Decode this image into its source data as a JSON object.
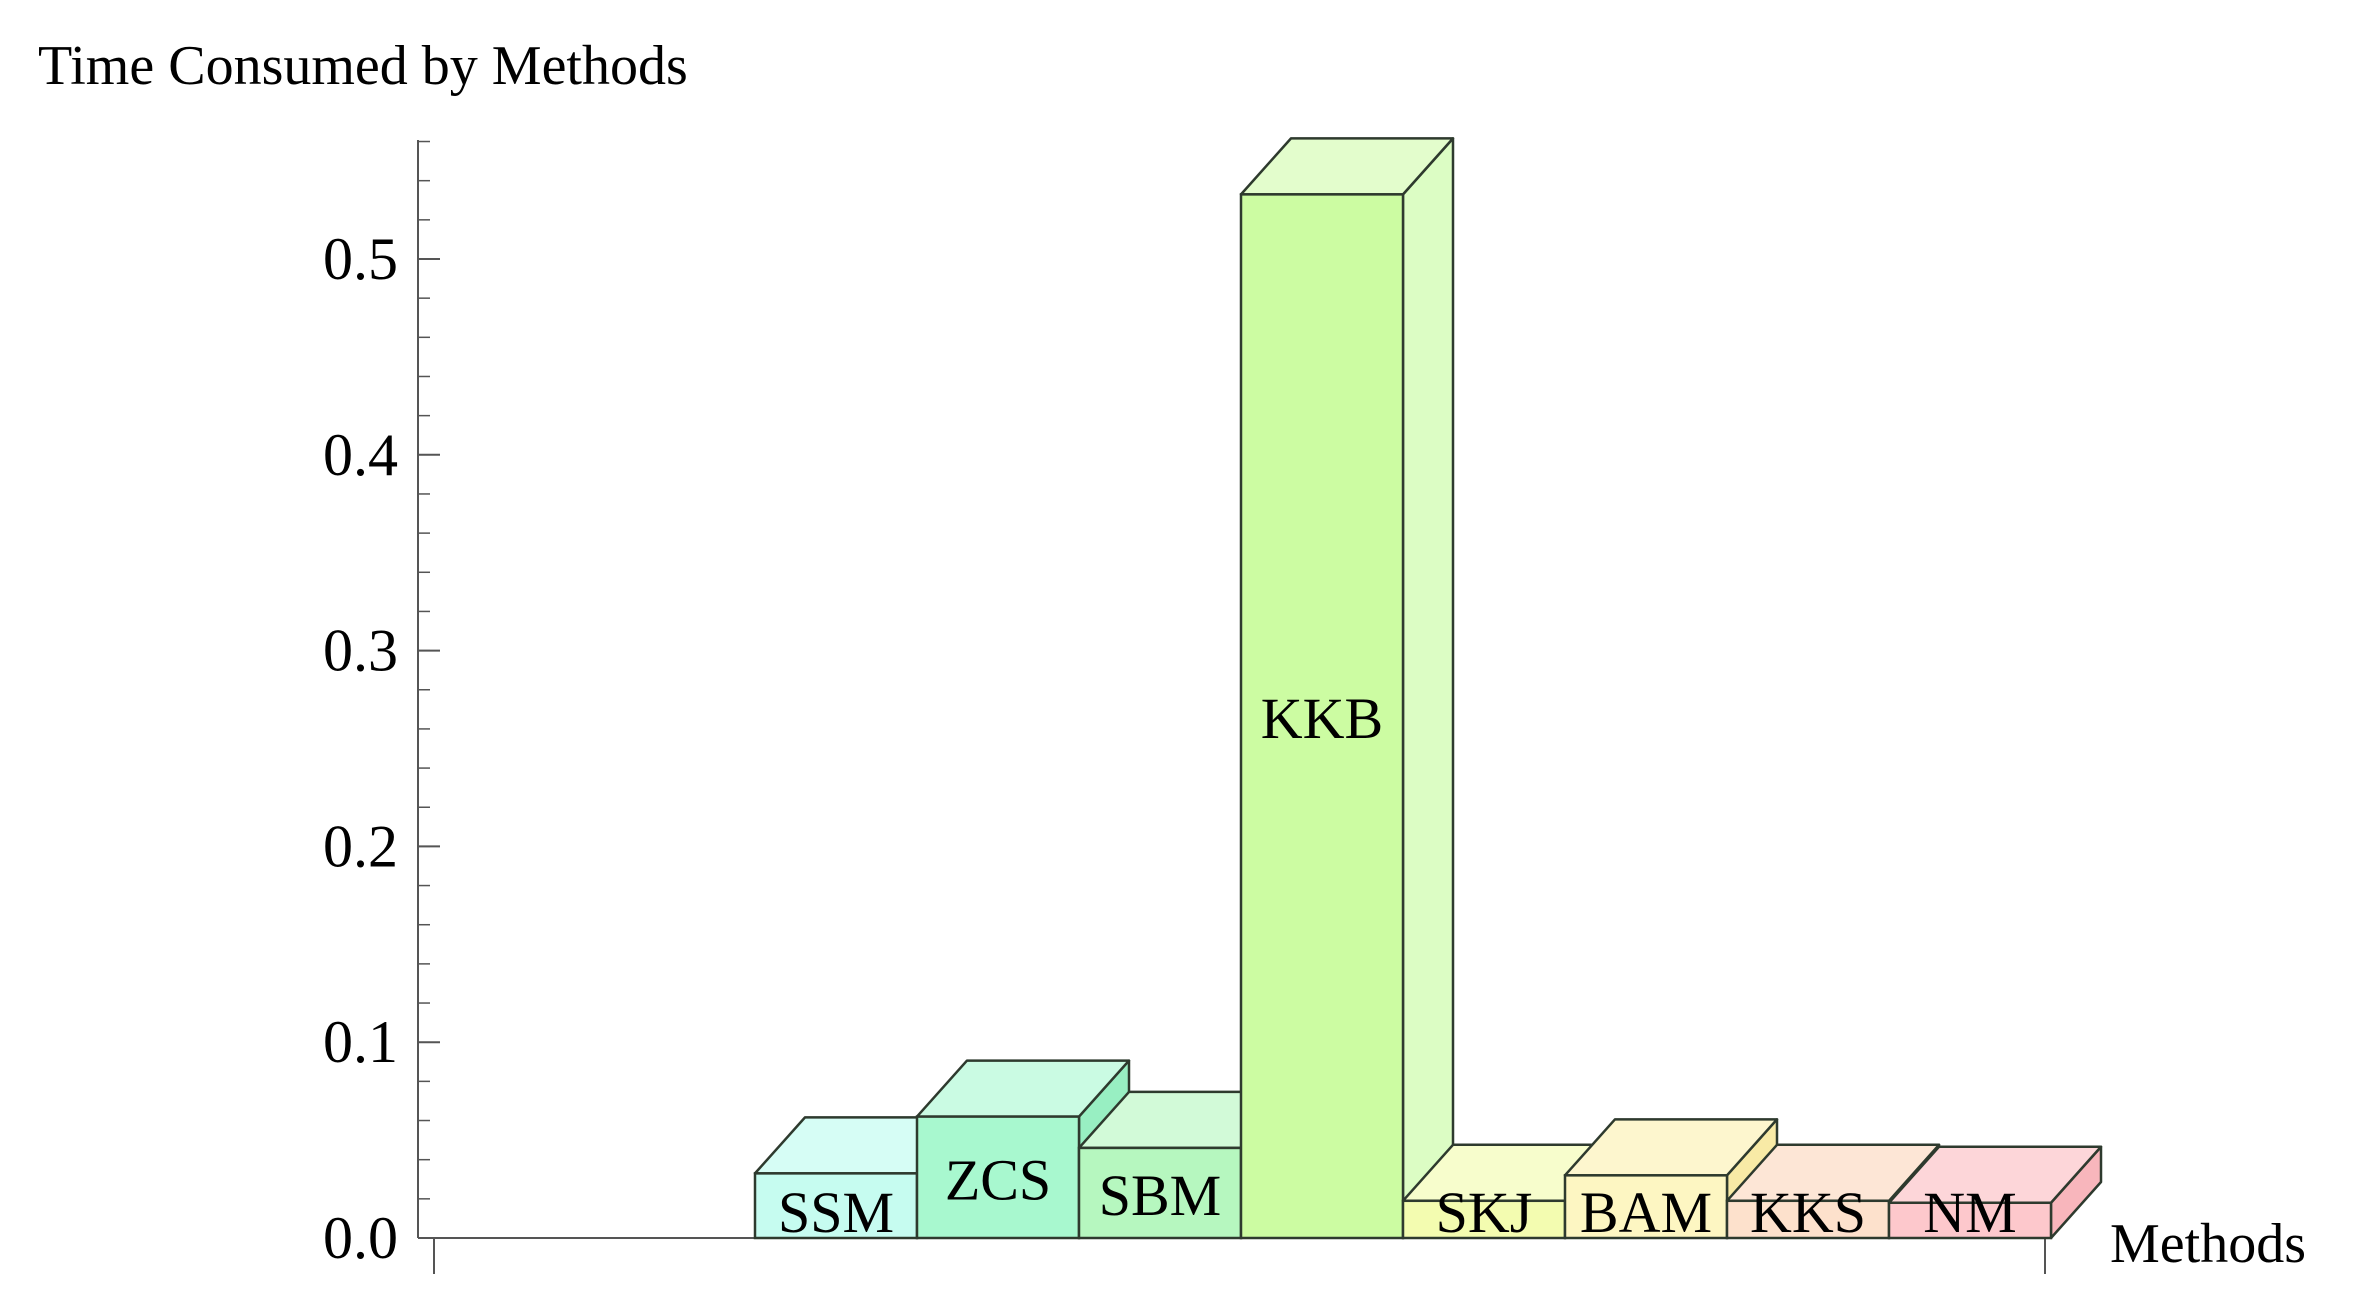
{
  "chart_data": {
    "type": "bar",
    "title": "",
    "ylabel": "Time Consumed by Methods",
    "xlabel": "Methods",
    "categories": [
      "SSM",
      "ZCS",
      "SBM",
      "KKB",
      "SKJ",
      "BAM",
      "KKS",
      "NM"
    ],
    "values": [
      0.033,
      0.062,
      0.046,
      0.533,
      0.019,
      0.032,
      0.019,
      0.018
    ],
    "ylim": [
      0.0,
      0.56
    ],
    "yticks": [
      "0.0",
      "0.1",
      "0.2",
      "0.3",
      "0.4",
      "0.5"
    ],
    "grid": false,
    "bar_style": "3d",
    "colors": {
      "SSM": {
        "front": "#c6fcf0",
        "top": "#d6fdf5",
        "side": "#b2f3e3"
      },
      "ZCS": {
        "front": "#a8f8cf",
        "top": "#cafbe3",
        "side": "#98efc2"
      },
      "SBM": {
        "front": "#b6f7bf",
        "top": "#d2fad8",
        "side": "#a5f0b0"
      },
      "KKB": {
        "front": "#ccfca2",
        "top": "#e3fdcc",
        "side": "#dcfdc4"
      },
      "SKJ": {
        "front": "#f3fcb0",
        "top": "#f7fdcc",
        "side": "#eaf59e"
      },
      "BAM": {
        "front": "#fdf6c2",
        "top": "#fdf6ce",
        "side": "#f8eaa6"
      },
      "KKS": {
        "front": "#fde1cc",
        "top": "#fde6d6",
        "side": "#f8d2b8"
      },
      "NM": {
        "front": "#fdc8cc",
        "top": "#fdd6d9",
        "side": "#f8b6bc"
      }
    },
    "edge_color": "#2e3a2e",
    "axis_color": "#555555"
  }
}
